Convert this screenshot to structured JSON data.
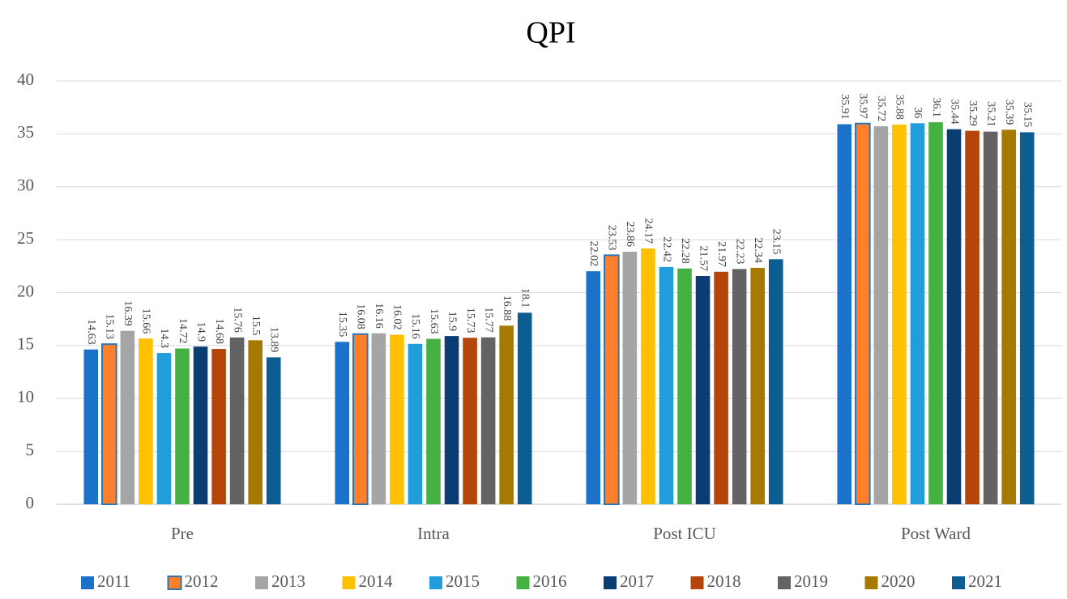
{
  "chart_data": {
    "type": "bar",
    "title": "QPI",
    "categories": [
      "Pre",
      "Intra",
      "Post ICU",
      "Post Ward"
    ],
    "series": [
      {
        "name": "2011",
        "color": "#1c72c8",
        "values": [
          14.63,
          15.35,
          22.02,
          35.91
        ]
      },
      {
        "name": "2012",
        "color": "#ff7f2a",
        "edgecolor": "#2e75b6",
        "values": [
          15.13,
          16.08,
          23.53,
          35.97
        ]
      },
      {
        "name": "2013",
        "color": "#a5a5a5",
        "values": [
          16.39,
          16.16,
          23.86,
          35.72
        ]
      },
      {
        "name": "2014",
        "color": "#ffc000",
        "values": [
          15.66,
          16.02,
          24.17,
          35.88
        ]
      },
      {
        "name": "2015",
        "color": "#229ddb",
        "values": [
          14.3,
          15.16,
          22.42,
          36
        ]
      },
      {
        "name": "2016",
        "color": "#44b142",
        "values": [
          14.72,
          15.63,
          22.28,
          36.1
        ]
      },
      {
        "name": "2017",
        "color": "#0a3e72",
        "values": [
          14.9,
          15.9,
          21.57,
          35.44
        ]
      },
      {
        "name": "2018",
        "color": "#b4460b",
        "values": [
          14.68,
          15.73,
          21.97,
          35.29
        ]
      },
      {
        "name": "2019",
        "color": "#636363",
        "values": [
          15.76,
          15.77,
          22.23,
          35.21
        ]
      },
      {
        "name": "2020",
        "color": "#a67900",
        "values": [
          15.5,
          16.88,
          22.34,
          35.39
        ]
      },
      {
        "name": "2021",
        "color": "#0c5e92",
        "values": [
          13.89,
          18.1,
          23.15,
          35.15
        ]
      }
    ],
    "ylim": [
      0,
      40
    ],
    "yticks": [
      0,
      5,
      10,
      15,
      20,
      25,
      30,
      35,
      40
    ],
    "grid": true,
    "legend": "bottom"
  }
}
